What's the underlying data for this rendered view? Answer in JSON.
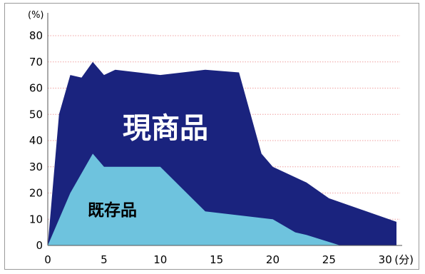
{
  "chart_data": {
    "type": "area",
    "x_unit": "(分)",
    "y_unit": "(%)",
    "xlim": [
      0,
      31
    ],
    "ylim": [
      0,
      80
    ],
    "x_ticks": [
      0,
      5,
      10,
      15,
      20,
      25,
      30
    ],
    "y_ticks": [
      0,
      10,
      20,
      30,
      40,
      50,
      60,
      70,
      80
    ],
    "grid": true,
    "colors": {
      "current": "#1a237e",
      "existing": "#6ec3de",
      "grid": "#f0a0a0"
    },
    "series": [
      {
        "name": "現商品",
        "x": [
          0,
          1,
          2,
          3,
          4,
          5,
          6,
          10,
          14,
          17,
          19,
          20,
          23,
          25,
          31
        ],
        "y": [
          0,
          50,
          65,
          64,
          70,
          65,
          67,
          65,
          67,
          66,
          35,
          30,
          24,
          18,
          9
        ]
      },
      {
        "name": "既存品",
        "x": [
          0,
          2,
          4,
          5,
          10,
          14,
          20,
          22,
          23,
          26
        ],
        "y": [
          0,
          20,
          35,
          30,
          30,
          13,
          10,
          5,
          4,
          0
        ]
      }
    ]
  }
}
